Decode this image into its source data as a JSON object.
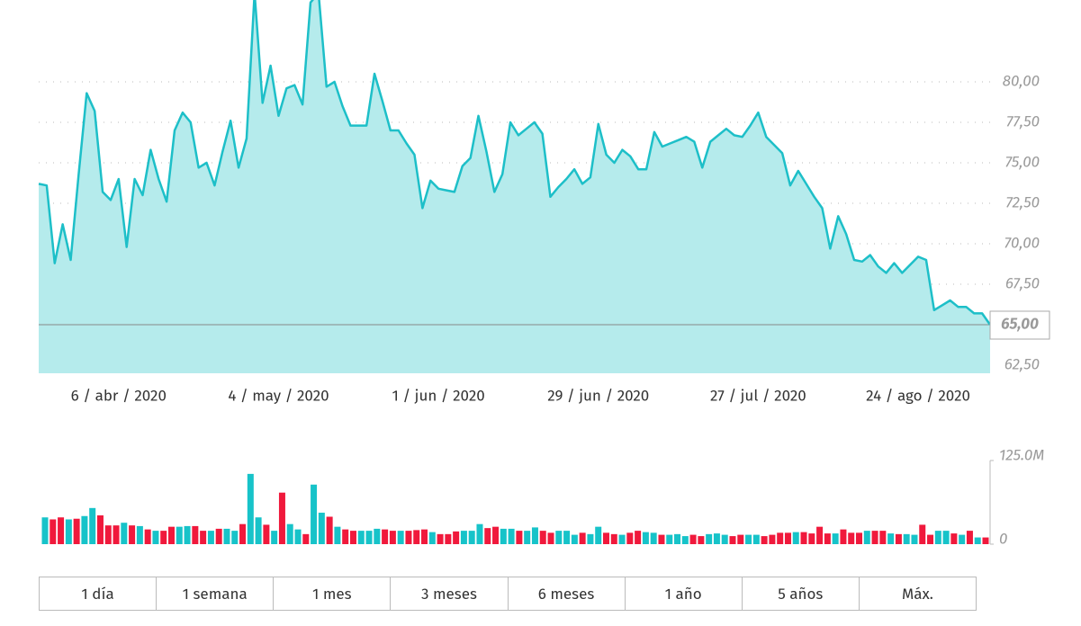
{
  "chart_data": [
    {
      "type": "line",
      "color": "#1dbfc8",
      "fill_color": "#b5ebec",
      "categories": [
        null,
        null,
        null,
        null,
        null,
        null,
        null,
        null,
        null,
        null,
        "6 / abr / 2020",
        null,
        null,
        null,
        null,
        null,
        null,
        null,
        null,
        null,
        null,
        null,
        null,
        null,
        null,
        null,
        null,
        null,
        null,
        null,
        "4 / may / 2020",
        null,
        null,
        null,
        null,
        null,
        null,
        null,
        null,
        null,
        null,
        null,
        null,
        null,
        null,
        null,
        null,
        null,
        null,
        null,
        "1 / jun / 2020",
        null,
        null,
        null,
        null,
        null,
        null,
        null,
        null,
        null,
        null,
        null,
        null,
        null,
        null,
        null,
        null,
        null,
        null,
        null,
        "29 / jun / 2020",
        null,
        null,
        null,
        null,
        null,
        null,
        null,
        null,
        null,
        null,
        null,
        null,
        null,
        null,
        null,
        null,
        null,
        null,
        null,
        "27 / jul / 2020",
        null,
        null,
        null,
        null,
        null,
        null,
        null,
        null,
        null,
        null,
        null,
        null,
        null,
        null,
        null,
        null,
        null,
        null,
        null,
        "24 / ago / 2020",
        null,
        null,
        null,
        null,
        null,
        null,
        null,
        null,
        null
      ],
      "values": [
        73.7,
        73.6,
        68.8,
        71.2,
        69.0,
        74.3,
        79.3,
        78.2,
        73.2,
        72.7,
        74.0,
        69.8,
        74.0,
        73.0,
        75.8,
        74.0,
        72.6,
        77.0,
        78.1,
        77.5,
        74.7,
        75.0,
        73.6,
        75.7,
        77.6,
        74.7,
        76.5,
        85.5,
        78.7,
        81.0,
        77.9,
        79.6,
        79.8,
        78.6,
        84.9,
        85.5,
        79.7,
        80.0,
        78.5,
        77.3,
        77.3,
        77.3,
        80.5,
        78.8,
        77.0,
        77.0,
        76.2,
        75.5,
        72.2,
        73.9,
        73.4,
        73.3,
        73.2,
        74.8,
        75.3,
        77.9,
        75.7,
        73.2,
        74.3,
        77.5,
        76.7,
        77.1,
        77.5,
        76.8,
        72.9,
        73.5,
        74.0,
        74.6,
        73.7,
        74.1,
        77.4,
        75.5,
        75.0,
        75.8,
        75.4,
        74.6,
        74.6,
        76.9,
        76.0,
        76.2,
        76.4,
        76.6,
        76.3,
        74.7,
        76.3,
        76.7,
        77.1,
        76.7,
        76.6,
        77.3,
        78.1,
        76.6,
        76.1,
        75.6,
        73.6,
        74.5,
        73.7,
        72.9,
        72.2,
        69.7,
        71.7,
        70.6,
        69.0,
        68.9,
        69.3,
        68.6,
        68.2,
        68.8,
        68.2,
        68.7,
        69.2,
        69.0,
        65.9,
        66.2,
        66.5,
        66.1,
        66.1,
        65.7,
        65.7,
        65.0
      ],
      "ylim": [
        62,
        86
      ],
      "yticks": [
        {
          "value": 62.5,
          "label": "62,50"
        },
        {
          "value": 67.5,
          "label": "67,50"
        },
        {
          "value": 70,
          "label": "70,00"
        },
        {
          "value": 72.5,
          "label": "72,50"
        },
        {
          "value": 75,
          "label": "75,00"
        },
        {
          "value": 77.5,
          "label": "77,50"
        },
        {
          "value": 80,
          "label": "80,00"
        }
      ],
      "last_price": {
        "value": 65,
        "label": "65,00"
      },
      "grid": true
    },
    {
      "type": "bar",
      "up_color": "#17c3c9",
      "down_color": "#f0193c",
      "values": [
        40,
        37,
        40,
        37,
        38,
        42,
        54,
        43,
        28,
        28,
        32,
        28,
        27,
        22,
        20,
        20,
        26,
        26,
        27,
        27,
        20,
        20,
        23,
        23,
        20,
        30,
        105,
        40,
        29,
        20,
        77,
        30,
        22,
        15,
        89,
        47,
        41,
        26,
        22,
        20,
        20,
        20,
        23,
        22,
        20,
        20,
        20,
        21,
        22,
        18,
        15,
        15,
        19,
        20,
        20,
        30,
        24,
        26,
        23,
        23,
        20,
        20,
        25,
        20,
        17,
        20,
        20,
        14,
        17,
        15,
        26,
        17,
        15,
        14,
        17,
        20,
        18,
        17,
        14,
        14,
        15,
        12,
        14,
        12,
        15,
        16,
        14,
        12,
        14,
        14,
        14,
        12,
        14,
        17,
        17,
        18,
        18,
        16,
        26,
        16,
        16,
        22,
        17,
        17,
        20,
        20,
        20,
        16,
        15,
        15,
        14,
        29,
        14,
        20,
        20,
        16,
        14,
        20,
        10,
        10
      ],
      "ylim": [
        0,
        125
      ],
      "yticks": [
        0,
        {
          "value": 125,
          "label": "125.0M"
        }
      ]
    }
  ],
  "buttons": [
    "1 día",
    "1 semana",
    "1 mes",
    "3 meses",
    "6 meses",
    "1 año",
    "5 años",
    "Máx."
  ]
}
